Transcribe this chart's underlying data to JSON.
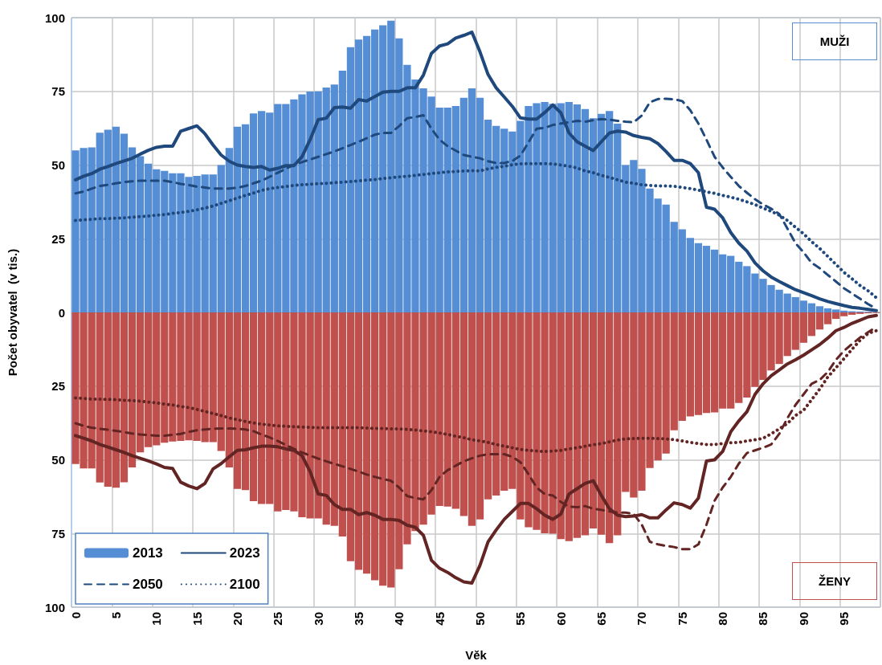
{
  "chart_data": {
    "type": "bar",
    "xlabel": "Věk",
    "ylabel": "Počet obyvatel  (v tis.)",
    "annotations": [
      "MUŽI",
      "ŽENY"
    ],
    "categories": [
      "0",
      null,
      null,
      null,
      null,
      "5",
      null,
      null,
      null,
      null,
      "10",
      null,
      null,
      null,
      null,
      "15",
      null,
      null,
      null,
      null,
      "20",
      null,
      null,
      null,
      null,
      "25",
      null,
      null,
      null,
      null,
      "30",
      null,
      null,
      null,
      null,
      "35",
      null,
      null,
      null,
      null,
      "40",
      null,
      null,
      null,
      null,
      "45",
      null,
      null,
      null,
      null,
      "50",
      null,
      null,
      null,
      null,
      "55",
      null,
      null,
      null,
      null,
      "60",
      null,
      null,
      null,
      null,
      "65",
      null,
      null,
      null,
      null,
      "70",
      null,
      null,
      null,
      null,
      "75",
      null,
      null,
      null,
      null,
      "80",
      null,
      null,
      null,
      null,
      "85",
      null,
      null,
      null,
      null,
      "90",
      null,
      null,
      null,
      null,
      "95",
      null,
      null,
      null,
      null
    ],
    "ylim": [
      -100,
      100
    ],
    "yticks": [
      {
        "value": -100,
        "label": "100"
      },
      {
        "value": -75,
        "label": "75"
      },
      {
        "value": -50,
        "label": "50"
      },
      {
        "value": -25,
        "label": "25"
      },
      0,
      25,
      50,
      75,
      100
    ],
    "grid": true,
    "legend": "bottom left",
    "marker": "none",
    "stacked": true,
    "series": [
      {
        "name": "2013",
        "type": "bar",
        "color": "#558ed5",
        "values": [
          55,
          55.8,
          56,
          61,
          62,
          63,
          60.6,
          56,
          53,
          50.5,
          48.6,
          48,
          47.2,
          47.2,
          46,
          46.3,
          46.8,
          46.8,
          50,
          55.8,
          63,
          63.8,
          67.5,
          68.3,
          67.8,
          70.7,
          70.7,
          72.3,
          74,
          74.9,
          75,
          76.3,
          77.3,
          82,
          90,
          92.6,
          93.8,
          96,
          97.4,
          99,
          93,
          84,
          79,
          76,
          73.2,
          69.5,
          69.5,
          70,
          72.8,
          76,
          72.8,
          65.4,
          63.3,
          62.3,
          61.4,
          65,
          70,
          71,
          71.4,
          70.8,
          71,
          71.4,
          70.6,
          69,
          65.9,
          67.4,
          68.3,
          64,
          50,
          51.7,
          48.7,
          42,
          38.6,
          36.6,
          30.7,
          28.2,
          25.3,
          23.5,
          22.6,
          21.3,
          19.7,
          19.2,
          17.2,
          15.7,
          13.2,
          11.4,
          9.3,
          7.7,
          6.4,
          5.2,
          4,
          3.1,
          2.1,
          1.4,
          1,
          0.6,
          0.4,
          0.3,
          0.2,
          0.1
        ]
      },
      {
        "type": "bar",
        "color": "#c0504d",
        "values": [
          -51.4,
          -52.9,
          -52.9,
          -57.7,
          -59.1,
          -59.5,
          -57.6,
          -52.6,
          -47.5,
          -45.7,
          -45.1,
          -44.2,
          -43.8,
          -43.6,
          -43.4,
          -43.6,
          -44,
          -44,
          -47,
          -52.6,
          -59.9,
          -60.3,
          -64,
          -65,
          -65,
          -67.5,
          -67,
          -67.5,
          -69.5,
          -69.9,
          -69.9,
          -72,
          -72.4,
          -76,
          -84.4,
          -87.3,
          -88.6,
          -90.9,
          -92.7,
          -93.3,
          -87.1,
          -78.7,
          -74.2,
          -72,
          -68.6,
          -65.7,
          -65.9,
          -66.6,
          -69.1,
          -72.4,
          -70.2,
          -63.4,
          -62.1,
          -60.5,
          -59.9,
          -70.2,
          -72.9,
          -73.8,
          -74.9,
          -75.1,
          -76.9,
          -77.6,
          -76.5,
          -75.6,
          -73.3,
          -75.4,
          -78.3,
          -75.6,
          -60.9,
          -62.8,
          -60.5,
          -52.8,
          -50.2,
          -47.9,
          -40,
          -36.8,
          -35.3,
          -34.8,
          -34.1,
          -33.9,
          -32.6,
          -32.6,
          -30.7,
          -28.9,
          -25.3,
          -22.9,
          -19.7,
          -17.5,
          -14.8,
          -12.7,
          -10.3,
          -8,
          -5.8,
          -4,
          -2.2,
          -1.3,
          -0.8,
          -0.5,
          -0.3,
          -0.2
        ]
      },
      {
        "name": "2023",
        "type": "line",
        "color": "#1f497d",
        "line_style": "solid",
        "values": [
          45,
          46.2,
          47.1,
          48.6,
          49.5,
          50.5,
          51.4,
          52.3,
          53.7,
          55,
          56,
          56.4,
          56.4,
          61.5,
          62.4,
          63.3,
          60.6,
          56.8,
          53.4,
          51.3,
          50,
          49.5,
          49.2,
          49.5,
          48.3,
          48.9,
          49.8,
          49.8,
          52.8,
          58.6,
          65.4,
          65.9,
          69.5,
          69.7,
          69.3,
          72.2,
          71.7,
          73.2,
          74.7,
          75,
          75,
          76.2,
          76.2,
          80.5,
          87.9,
          90.4,
          91.1,
          93.1,
          94,
          95.1,
          88.4,
          80.7,
          76.2,
          73.1,
          69.9,
          66,
          65.6,
          65.6,
          67.8,
          70.4,
          67.7,
          60.9,
          57.9,
          56.4,
          54.9,
          57.9,
          60.9,
          61.5,
          61.2,
          60,
          59.4,
          58.9,
          57.3,
          54.6,
          51.6,
          51.6,
          50.5,
          47.4,
          35.7,
          35,
          32.1,
          27.1,
          23.5,
          20.8,
          16.8,
          14.1,
          12,
          10.5,
          9.1,
          7.7,
          6.7,
          5.7,
          4.6,
          3.7,
          3,
          2.3,
          1.7,
          1.4,
          1,
          0.6
        ]
      },
      {
        "name": "2050",
        "type": "line",
        "color": "#1f497d",
        "line_style": "dashed",
        "values": [
          40.4,
          41,
          42,
          42.9,
          43.3,
          43.8,
          44.2,
          44.5,
          44.7,
          44.7,
          44.7,
          44.7,
          44.2,
          43.6,
          43.2,
          42.7,
          42.4,
          42,
          42,
          42,
          42.3,
          42.9,
          43.8,
          44.7,
          46,
          47.4,
          48.7,
          50.1,
          51,
          51.9,
          52.8,
          53.7,
          54.6,
          55.7,
          56.8,
          57.9,
          59.1,
          60.3,
          60.9,
          60.9,
          63.2,
          65.9,
          66.3,
          66.9,
          62.3,
          58.6,
          56.4,
          54.9,
          53.4,
          52.8,
          52.3,
          51.3,
          50.7,
          50.7,
          51.4,
          53.2,
          57.7,
          62.3,
          62.6,
          63.6,
          64.1,
          64.5,
          65,
          64.7,
          65.2,
          65.6,
          65.4,
          65,
          64.7,
          64.5,
          66.8,
          71.3,
          72.4,
          72.5,
          72.3,
          71.7,
          68.6,
          64.1,
          58.6,
          52.8,
          49.2,
          46,
          42.9,
          40.6,
          38.4,
          36.6,
          35.2,
          33.4,
          28.5,
          23.5,
          20.4,
          16.8,
          15,
          12.7,
          10.5,
          8.2,
          6.4,
          4.6,
          2.8,
          1.2
        ]
      },
      {
        "name": "2100",
        "type": "line",
        "color": "#1f497d",
        "line_style": "dotted",
        "values": [
          31.2,
          31.4,
          31.6,
          31.8,
          31.8,
          32,
          32.1,
          32.3,
          32.5,
          32.7,
          33,
          33.2,
          33.6,
          33.9,
          34.3,
          34.8,
          35.4,
          36.1,
          37,
          37.9,
          38.8,
          39.7,
          40.5,
          41.4,
          42,
          42.4,
          42.7,
          43.1,
          43.3,
          43.5,
          43.7,
          43.8,
          44,
          44.2,
          44.4,
          44.6,
          44.9,
          45.1,
          45.4,
          45.7,
          46,
          46.2,
          46.5,
          46.8,
          47.1,
          47.4,
          47.7,
          47.8,
          48,
          48.1,
          48,
          48.7,
          49.2,
          49.6,
          50.1,
          50.4,
          50.5,
          50.5,
          50.5,
          50.4,
          50,
          49.6,
          49,
          48,
          47.4,
          46.5,
          45.8,
          45,
          44.2,
          43.8,
          43.3,
          43.1,
          42.9,
          42.9,
          42.8,
          42.4,
          42,
          41.5,
          40.9,
          40.4,
          39.7,
          39.1,
          38.4,
          37.5,
          36.6,
          35.4,
          34.3,
          33,
          31.2,
          28.9,
          26.7,
          24,
          21.7,
          19,
          16.3,
          13.6,
          11.4,
          9.1,
          7.3,
          5
        ]
      },
      {
        "type": "line",
        "color": "#632523",
        "line_style": "solid",
        "values": [
          -41.8,
          -42.7,
          -43.6,
          -44.8,
          -45.7,
          -46.6,
          -47.5,
          -48.6,
          -49.5,
          -50.4,
          -51.4,
          -52.6,
          -52.9,
          -57.6,
          -58.9,
          -59.8,
          -58,
          -53.1,
          -51.3,
          -49,
          -46.8,
          -46.6,
          -45.9,
          -45.4,
          -45.4,
          -45.6,
          -46.3,
          -46.8,
          -48.6,
          -54,
          -61.6,
          -62.1,
          -65.2,
          -66.8,
          -66.8,
          -68.6,
          -67.9,
          -68.8,
          -70.2,
          -70.2,
          -70.6,
          -72.2,
          -72.9,
          -75.6,
          -84.1,
          -86.8,
          -88.2,
          -90,
          -91.4,
          -91.8,
          -85.8,
          -77.8,
          -73.8,
          -70.2,
          -67.5,
          -64.8,
          -64.8,
          -66.6,
          -68.8,
          -70.2,
          -68.4,
          -61.6,
          -59.8,
          -58,
          -57.1,
          -62.1,
          -66.6,
          -68.8,
          -69.3,
          -69.1,
          -68.6,
          -69.7,
          -69.7,
          -67,
          -64.6,
          -65.2,
          -66.4,
          -63,
          -50.4,
          -50,
          -47.2,
          -40.5,
          -36.8,
          -33.7,
          -27.8,
          -24.2,
          -21.5,
          -19.5,
          -17.5,
          -16.1,
          -14.5,
          -12.7,
          -10.9,
          -8.7,
          -6.2,
          -5.1,
          -3.7,
          -2.6,
          -1.5,
          -1
        ]
      },
      {
        "type": "line",
        "color": "#632523",
        "line_style": "dashed",
        "values": [
          -37.6,
          -38.5,
          -39.1,
          -39.5,
          -39.8,
          -40.2,
          -40.6,
          -41.1,
          -41.4,
          -41.6,
          -41.8,
          -41.8,
          -41.5,
          -41.2,
          -40.5,
          -40,
          -39.7,
          -39.5,
          -39.4,
          -39.4,
          -39.5,
          -39.7,
          -40.3,
          -41.4,
          -42.4,
          -43.6,
          -45,
          -46.3,
          -47.5,
          -48.6,
          -49.6,
          -50.5,
          -51.4,
          -52.2,
          -53.1,
          -54,
          -55,
          -55.8,
          -56.5,
          -57.1,
          -59.4,
          -62.3,
          -63,
          -63.4,
          -60.3,
          -55.8,
          -53.5,
          -52,
          -50.5,
          -49.5,
          -48.6,
          -48.1,
          -48.1,
          -48.1,
          -49,
          -50.8,
          -54.9,
          -59.4,
          -61.6,
          -62.1,
          -64.3,
          -65.9,
          -66.1,
          -65.7,
          -66.6,
          -67,
          -67.5,
          -67.9,
          -67.9,
          -68.4,
          -72,
          -77.8,
          -78.7,
          -79.2,
          -79.6,
          -80.3,
          -80.3,
          -78.7,
          -72,
          -63.9,
          -59.4,
          -55.8,
          -51.3,
          -47.7,
          -46.8,
          -45.9,
          -44.8,
          -41.2,
          -35.9,
          -31.4,
          -27.8,
          -24.2,
          -22.9,
          -20.2,
          -16.1,
          -13,
          -10.7,
          -8.5,
          -6.7,
          -4.9
        ]
      },
      {
        "type": "line",
        "color": "#632523",
        "line_style": "dotted",
        "values": [
          -29,
          -29.2,
          -29.4,
          -29.4,
          -29.5,
          -29.6,
          -29.8,
          -29.9,
          -30.1,
          -30.4,
          -30.7,
          -31.1,
          -31.4,
          -31.9,
          -32.3,
          -32.9,
          -33.6,
          -34.3,
          -35,
          -35.8,
          -36.4,
          -37,
          -37.5,
          -37.9,
          -38.2,
          -38.5,
          -38.6,
          -38.8,
          -38.9,
          -39,
          -39.1,
          -39.1,
          -39.1,
          -39.1,
          -39.1,
          -39.1,
          -39.2,
          -39.4,
          -39.4,
          -39.5,
          -39.5,
          -39.7,
          -39.9,
          -40.2,
          -40.5,
          -40.9,
          -41.4,
          -42,
          -42.5,
          -43.2,
          -43.6,
          -44.1,
          -44.8,
          -45.4,
          -45.9,
          -46.5,
          -46.8,
          -47,
          -47.2,
          -47,
          -46.8,
          -46.3,
          -45.9,
          -45.4,
          -44.9,
          -44.5,
          -43.9,
          -43.3,
          -42.9,
          -42.8,
          -42.7,
          -42.7,
          -42.8,
          -42.9,
          -43.2,
          -43.6,
          -44.1,
          -44.5,
          -44.8,
          -44.8,
          -44.5,
          -44.2,
          -44.1,
          -43.6,
          -43.2,
          -42.7,
          -41.2,
          -39.5,
          -37.7,
          -35,
          -33.2,
          -29.6,
          -26,
          -21.9,
          -18.8,
          -15.7,
          -12.5,
          -9.4,
          -7.1,
          -6.2
        ]
      }
    ]
  }
}
